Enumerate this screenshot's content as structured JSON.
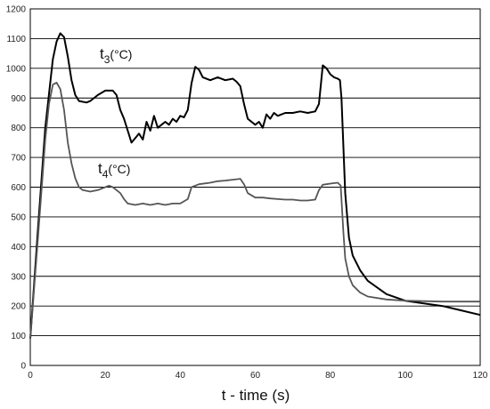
{
  "chart_data": {
    "type": "line",
    "title": "",
    "xlabel": "t - time (s)",
    "ylabel": "",
    "xlim": [
      0,
      120
    ],
    "ylim": [
      0,
      1200
    ],
    "x_ticks": [
      0,
      20,
      40,
      60,
      80,
      100,
      120
    ],
    "y_ticks": [
      0,
      100,
      200,
      300,
      400,
      500,
      600,
      700,
      800,
      900,
      1000,
      1100,
      1200
    ],
    "grid": "horizontal",
    "series": [
      {
        "name": "t3(°C)",
        "label_main": "t",
        "label_sub": "3",
        "label_unit": "(°C)",
        "color": "#000000",
        "points": [
          [
            0,
            90
          ],
          [
            2,
            450
          ],
          [
            4,
            800
          ],
          [
            6,
            1030
          ],
          [
            7,
            1090
          ],
          [
            8,
            1118
          ],
          [
            9,
            1105
          ],
          [
            10,
            1040
          ],
          [
            11,
            960
          ],
          [
            12,
            910
          ],
          [
            13,
            890
          ],
          [
            15,
            885
          ],
          [
            16,
            890
          ],
          [
            18,
            910
          ],
          [
            20,
            925
          ],
          [
            22,
            925
          ],
          [
            23,
            910
          ],
          [
            24,
            860
          ],
          [
            25,
            830
          ],
          [
            26,
            790
          ],
          [
            27,
            750
          ],
          [
            28,
            765
          ],
          [
            29,
            780
          ],
          [
            30,
            760
          ],
          [
            31,
            820
          ],
          [
            32,
            790
          ],
          [
            33,
            840
          ],
          [
            34,
            800
          ],
          [
            35,
            810
          ],
          [
            36,
            820
          ],
          [
            37,
            810
          ],
          [
            38,
            830
          ],
          [
            39,
            820
          ],
          [
            40,
            840
          ],
          [
            41,
            835
          ],
          [
            42,
            860
          ],
          [
            43,
            950
          ],
          [
            44,
            1005
          ],
          [
            45,
            995
          ],
          [
            46,
            970
          ],
          [
            48,
            960
          ],
          [
            50,
            970
          ],
          [
            52,
            960
          ],
          [
            54,
            965
          ],
          [
            55,
            955
          ],
          [
            56,
            940
          ],
          [
            57,
            880
          ],
          [
            58,
            830
          ],
          [
            60,
            810
          ],
          [
            61,
            820
          ],
          [
            62,
            800
          ],
          [
            63,
            845
          ],
          [
            64,
            830
          ],
          [
            65,
            850
          ],
          [
            66,
            840
          ],
          [
            68,
            850
          ],
          [
            70,
            850
          ],
          [
            72,
            855
          ],
          [
            74,
            850
          ],
          [
            76,
            855
          ],
          [
            77,
            880
          ],
          [
            78,
            1010
          ],
          [
            79,
            1000
          ],
          [
            80,
            980
          ],
          [
            81,
            970
          ],
          [
            82,
            965
          ],
          [
            82.6,
            960
          ],
          [
            83,
            900
          ],
          [
            84,
            580
          ],
          [
            85,
            430
          ],
          [
            86,
            370
          ],
          [
            88,
            320
          ],
          [
            90,
            285
          ],
          [
            95,
            240
          ],
          [
            100,
            218
          ],
          [
            110,
            200
          ],
          [
            120,
            170
          ]
        ]
      },
      {
        "name": "t4(°C)",
        "label_main": "t",
        "label_sub": "4",
        "label_unit": "(°C)",
        "color": "#555555",
        "points": [
          [
            0,
            90
          ],
          [
            2,
            420
          ],
          [
            4,
            760
          ],
          [
            5,
            880
          ],
          [
            6,
            945
          ],
          [
            7,
            952
          ],
          [
            8,
            930
          ],
          [
            9,
            860
          ],
          [
            10,
            750
          ],
          [
            11,
            680
          ],
          [
            12,
            630
          ],
          [
            13,
            600
          ],
          [
            14,
            590
          ],
          [
            16,
            585
          ],
          [
            18,
            590
          ],
          [
            20,
            600
          ],
          [
            21,
            605
          ],
          [
            22,
            600
          ],
          [
            23,
            590
          ],
          [
            24,
            580
          ],
          [
            25,
            560
          ],
          [
            26,
            545
          ],
          [
            28,
            540
          ],
          [
            30,
            545
          ],
          [
            32,
            540
          ],
          [
            34,
            545
          ],
          [
            36,
            540
          ],
          [
            38,
            545
          ],
          [
            40,
            545
          ],
          [
            42,
            560
          ],
          [
            43,
            600
          ],
          [
            45,
            610
          ],
          [
            48,
            615
          ],
          [
            50,
            620
          ],
          [
            52,
            622
          ],
          [
            54,
            625
          ],
          [
            56,
            628
          ],
          [
            57,
            610
          ],
          [
            58,
            580
          ],
          [
            60,
            565
          ],
          [
            62,
            565
          ],
          [
            64,
            562
          ],
          [
            66,
            560
          ],
          [
            68,
            558
          ],
          [
            70,
            558
          ],
          [
            72,
            555
          ],
          [
            74,
            555
          ],
          [
            76,
            558
          ],
          [
            77,
            590
          ],
          [
            78,
            608
          ],
          [
            80,
            612
          ],
          [
            82,
            615
          ],
          [
            82.8,
            605
          ],
          [
            83.5,
            450
          ],
          [
            84,
            360
          ],
          [
            85,
            300
          ],
          [
            86,
            270
          ],
          [
            88,
            245
          ],
          [
            90,
            232
          ],
          [
            95,
            222
          ],
          [
            100,
            218
          ],
          [
            110,
            215
          ],
          [
            120,
            215
          ]
        ]
      }
    ]
  }
}
